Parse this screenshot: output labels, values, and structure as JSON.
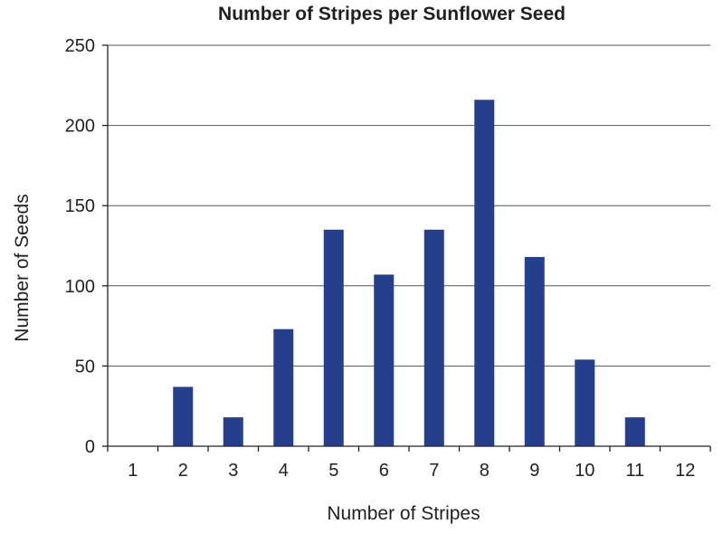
{
  "chart_data": {
    "type": "bar",
    "title": "Number of Stripes per Sunflower Seed",
    "xlabel": "Number of Stripes",
    "ylabel": "Number of Seeds",
    "categories": [
      "1",
      "2",
      "3",
      "4",
      "5",
      "6",
      "7",
      "8",
      "9",
      "10",
      "11",
      "12"
    ],
    "values": [
      0,
      37,
      18,
      73,
      135,
      107,
      135,
      216,
      118,
      54,
      18,
      0
    ],
    "ylim": [
      0,
      250
    ],
    "yticks": [
      "0",
      "50",
      "100",
      "150",
      "200",
      "250"
    ],
    "grid": true,
    "bar_color": "#263f8c"
  }
}
